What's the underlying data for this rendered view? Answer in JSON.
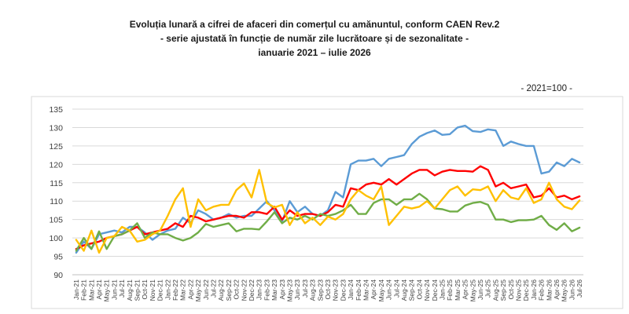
{
  "titles": {
    "line1": "Evoluția lunară a cifrei de afaceri din comerțul cu amănuntul, conform CAEN Rev.2",
    "line2": "- serie ajustată în funcție de număr zile lucrătoare și de sezonalitate -",
    "line3": "ianuarie 2021 – iulie 2026"
  },
  "unit_label": "- 2021=100 -",
  "chart_data": {
    "type": "line",
    "title": "Evoluția lunară a cifrei de afaceri din comerțul cu amănuntul, conform CAEN Rev.2",
    "subtitle": "- serie ajustată în funcție de număr zile lucrătoare și de sezonalitate -",
    "period": "ianuarie 2021 – iulie 2026",
    "unit": "- 2021=100 -",
    "ylim": [
      90,
      135
    ],
    "yticks": [
      "90",
      "95",
      "100",
      "105",
      "110",
      "115",
      "120",
      "125",
      "130",
      "135"
    ],
    "grid": true,
    "legend": "none",
    "x": [
      "Jan-21",
      "Feb-21",
      "Mar-21",
      "Apr-21",
      "May-21",
      "Jun-21",
      "Jul-21",
      "Aug-21",
      "Sep-21",
      "Oct-21",
      "Nov-21",
      "Dec-21",
      "Jan-22",
      "Feb-22",
      "Mar-22",
      "Apr-22",
      "May-22",
      "Jun-22",
      "Jul-22",
      "Aug-22",
      "Sep-22",
      "Oct-22",
      "Nov-22",
      "Dec-22",
      "Jan-23",
      "Feb-23",
      "Mar-23",
      "Apr-23",
      "May-23",
      "Jun-23",
      "Jul-23",
      "Aug-23",
      "Sep-23",
      "Oct-23",
      "Nov-23",
      "Dec-23",
      "Jan-24",
      "Feb-24",
      "Mar-24",
      "Apr-24",
      "May-24",
      "Jun-24",
      "Jul-24",
      "Aug-24",
      "Sep-24",
      "Oct-24",
      "Nov-24",
      "Dec-24",
      "Jan-25",
      "Feb-25",
      "Mar-25",
      "Apr-25",
      "May-25",
      "Jun-25",
      "Jul-25",
      "Aug-25",
      "Sep-25",
      "Oct-25",
      "Nov-25",
      "Dec-25",
      "Jan-26",
      "Feb-26",
      "Mar-26",
      "Apr-26",
      "May-26",
      "Jun-26",
      "Jul-26"
    ],
    "xtick_labels": [
      "Jan-21",
      "Mar-21",
      "May-21",
      "Jul-21",
      "Sep-21",
      "Nov-21",
      "Jan-22",
      "Mar-22",
      "May-22",
      "Jul-22",
      "Sep-22",
      "Nov-22",
      "Jan-23",
      "Mar-23",
      "May-23",
      "Jul-23",
      "Sep-23",
      "Nov-23",
      "Jan-24",
      "Mar-24",
      "May-24",
      "Jul-24",
      "Sep-24",
      "Nov-24",
      "Jan-25",
      "Mar-25",
      "May-25",
      "Jul-25",
      "Sep-25",
      "Nov-25",
      "Jan-26",
      "Mar-26",
      "May-26",
      "Jul-26",
      "Feb-21",
      "Apr-21",
      "Jun-21",
      "Aug-21",
      "Oct-21",
      "Dec-21",
      "Feb-22",
      "Apr-22",
      "Jun-22",
      "Aug-22",
      "Oct-22",
      "Dec-22",
      "Feb-23",
      "Apr-23",
      "Jun-23",
      "Aug-23",
      "Oct-23",
      "Dec-23",
      "Feb-24",
      "Apr-24",
      "Jun-24",
      "Aug-24",
      "Oct-24",
      "Dec-24",
      "Feb-25",
      "Apr-25",
      "Jun-25",
      "Aug-25",
      "Oct-25",
      "Dec-25",
      "Feb-26",
      "Apr-26",
      "Jun-26"
    ],
    "series": [
      {
        "color": "#5b9bd5",
        "values": [
          96,
          99,
          97,
          101,
          101.5,
          102,
          101.5,
          103,
          103,
          101.5,
          99.5,
          101,
          102,
          102.5,
          105.5,
          104,
          107.5,
          106.5,
          105,
          105.5,
          106.5,
          105.5,
          106,
          106,
          108,
          110,
          107.5,
          104.5,
          110,
          107,
          108.5,
          106.5,
          106,
          107.5,
          112.5,
          111,
          120,
          121,
          121,
          121.5,
          119.5,
          121.5,
          122,
          122.5,
          125.5,
          127.5,
          128.5,
          129.2,
          128,
          128.2,
          130,
          130.5,
          129,
          128.8,
          129.5,
          129.2,
          125,
          126.2,
          125.5,
          125,
          125,
          117.5,
          118,
          120.5,
          119.5,
          121.5,
          120.5
        ]
      },
      {
        "color": "#ff0000",
        "values": [
          97,
          98,
          98.5,
          99,
          100,
          100.5,
          101,
          102,
          103,
          101,
          101.5,
          102,
          102.5,
          104,
          103,
          106,
          105.5,
          104.5,
          105,
          105.5,
          106,
          106,
          105.5,
          107,
          107,
          106.5,
          108.5,
          105,
          107.5,
          106,
          106.5,
          106.5,
          106,
          107,
          109,
          108.5,
          113.5,
          113,
          114.5,
          115,
          114.5,
          116,
          114.5,
          116,
          117.5,
          118.5,
          118.5,
          117,
          118,
          118.5,
          118.2,
          118.2,
          118,
          119.5,
          118.5,
          114,
          115,
          113.5,
          114,
          114.5,
          111,
          111.5,
          113.5,
          111,
          111.5,
          110.5,
          111.3
        ]
      },
      {
        "color": "#70ad47",
        "values": [
          96.5,
          100,
          97,
          101.8,
          97,
          100.5,
          101,
          102,
          104,
          100,
          101.5,
          101,
          101,
          100,
          99.3,
          100,
          101.5,
          103.8,
          103,
          103.5,
          104,
          101.8,
          102.5,
          102.5,
          102.3,
          104.5,
          107,
          104,
          105.5,
          105,
          106,
          105,
          106.5,
          106,
          106.5,
          107.5,
          109,
          106.5,
          106.5,
          109.5,
          110.5,
          110.5,
          109,
          110.5,
          110.5,
          112,
          110.5,
          108,
          107.8,
          107.2,
          107.2,
          108.8,
          109.5,
          109.8,
          109,
          105,
          105,
          104.3,
          104.8,
          104.8,
          105,
          106,
          103.5,
          102.2,
          104,
          101.8,
          102.8
        ]
      },
      {
        "color": "#ffc000",
        "values": [
          99.5,
          96.5,
          102,
          96,
          100,
          100.5,
          103,
          102,
          99,
          99.5,
          101,
          102,
          106,
          110.5,
          113.5,
          103,
          110.5,
          107.5,
          108.5,
          109,
          109,
          113,
          114.8,
          111,
          118.5,
          109.5,
          108.3,
          109,
          103.5,
          107,
          104,
          105.5,
          103.5,
          105.8,
          105,
          106.5,
          110.5,
          113,
          111.5,
          110.5,
          114,
          103.5,
          106,
          108.5,
          108,
          108.5,
          110,
          108,
          110.5,
          113,
          114,
          111.5,
          113.2,
          113,
          114,
          110,
          113,
          111,
          110.5,
          113.5,
          109.5,
          110.5,
          115,
          110.5,
          108.5,
          107.8,
          110.2
        ]
      }
    ]
  }
}
